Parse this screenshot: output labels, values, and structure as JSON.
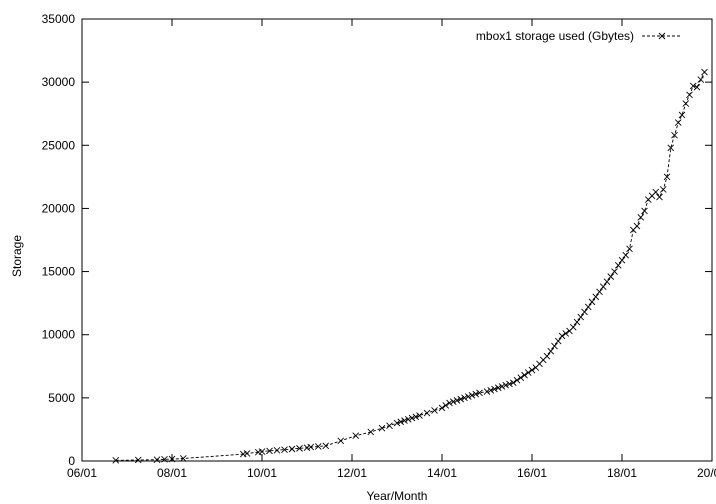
{
  "chart_data": {
    "type": "line",
    "xlabel": "Year/Month",
    "ylabel": "Storage",
    "xlim": [
      "2006-01",
      "2020-01"
    ],
    "ylim": [
      0,
      35000
    ],
    "x_ticks": [
      "06/01",
      "08/01",
      "10/01",
      "12/01",
      "14/01",
      "16/01",
      "18/01",
      "20/01"
    ],
    "y_ticks": [
      "0",
      "5000",
      "10000",
      "15000",
      "20000",
      "25000",
      "30000",
      "35000"
    ],
    "grid": false,
    "legend_position": "top-right",
    "series": [
      {
        "name": "mbox1 storage used (Gbytes)",
        "style": "dashed line with x markers",
        "color": "#000000",
        "x": [
          "2006-10",
          "2007-04",
          "2007-09",
          "2007-11",
          "2008-01",
          "2008-04",
          "2009-08",
          "2009-09",
          "2009-12",
          "2010-01",
          "2010-03",
          "2010-05",
          "2010-07",
          "2010-09",
          "2010-11",
          "2011-01",
          "2011-02",
          "2011-04",
          "2011-06",
          "2011-10",
          "2012-02",
          "2012-06",
          "2012-09",
          "2012-11",
          "2013-01",
          "2013-02",
          "2013-03",
          "2013-04",
          "2013-05",
          "2013-06",
          "2013-07",
          "2013-09",
          "2013-11",
          "2014-01",
          "2014-02",
          "2014-03",
          "2014-04",
          "2014-05",
          "2014-06",
          "2014-07",
          "2014-08",
          "2014-09",
          "2014-10",
          "2014-11",
          "2015-01",
          "2015-02",
          "2015-03",
          "2015-04",
          "2015-05",
          "2015-06",
          "2015-07",
          "2015-08",
          "2015-09",
          "2015-10",
          "2015-11",
          "2015-12",
          "2016-01",
          "2016-02",
          "2016-03",
          "2016-04",
          "2016-05",
          "2016-06",
          "2016-07",
          "2016-08",
          "2016-09",
          "2016-10",
          "2016-11",
          "2016-12",
          "2017-01",
          "2017-02",
          "2017-03",
          "2017-04",
          "2017-05",
          "2017-06",
          "2017-07",
          "2017-08",
          "2017-09",
          "2017-10",
          "2017-11",
          "2017-12",
          "2018-01",
          "2018-02",
          "2018-03",
          "2018-04",
          "2018-05",
          "2018-06",
          "2018-07",
          "2018-08",
          "2018-09",
          "2018-10",
          "2018-11",
          "2018-12",
          "2019-01",
          "2019-02",
          "2019-03",
          "2019-04",
          "2019-05",
          "2019-06",
          "2019-07",
          "2019-08",
          "2019-09",
          "2019-10",
          "2019-11"
        ],
        "y": [
          50,
          80,
          100,
          130,
          150,
          200,
          550,
          600,
          700,
          750,
          800,
          850,
          900,
          950,
          1000,
          1050,
          1100,
          1150,
          1200,
          1600,
          2000,
          2300,
          2600,
          2800,
          3000,
          3100,
          3200,
          3300,
          3400,
          3500,
          3600,
          3800,
          4000,
          4200,
          4400,
          4600,
          4700,
          4800,
          4900,
          5000,
          5100,
          5200,
          5300,
          5400,
          5500,
          5600,
          5700,
          5800,
          5900,
          6000,
          6100,
          6200,
          6400,
          6600,
          6800,
          7000,
          7200,
          7400,
          7700,
          8000,
          8300,
          8700,
          9100,
          9500,
          9900,
          10100,
          10300,
          10600,
          11000,
          11400,
          11800,
          12200,
          12600,
          13000,
          13400,
          13800,
          14200,
          14600,
          15000,
          15500,
          15900,
          16300,
          16800,
          18300,
          18600,
          19300,
          19800,
          20700,
          21000,
          21300,
          20900,
          21500,
          22500,
          24800,
          25800,
          26800,
          27400,
          28300,
          29000,
          29700,
          29600,
          30200,
          30800
        ]
      }
    ]
  }
}
